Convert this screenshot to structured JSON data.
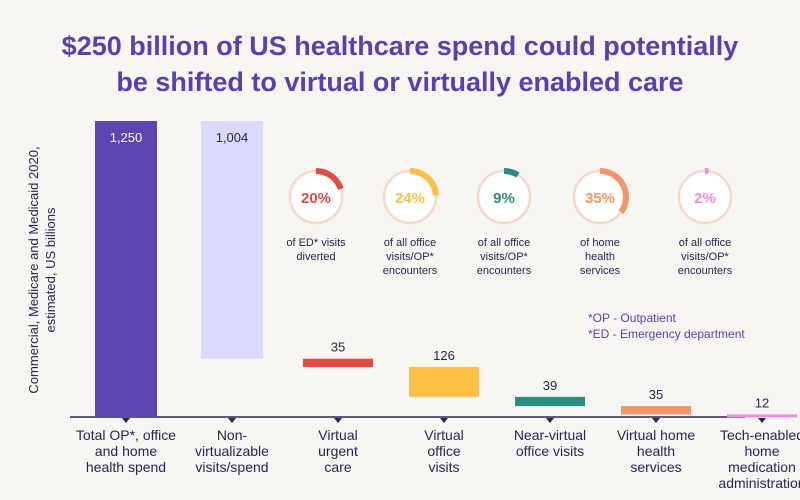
{
  "chart_data": {
    "type": "bar",
    "subtype": "waterfall",
    "title_lines": [
      "$250 billion of US healthcare spend could potentially",
      "be shifted to virtual or virtually enabled care"
    ],
    "ylabel_lines": [
      "Commercial, Medicare and Medicaid 2020,",
      "estimated, US billions"
    ],
    "ylim": [
      0,
      1250
    ],
    "categories": [
      [
        "Total OP*, office",
        "and home",
        "health spend"
      ],
      [
        "Non-",
        "virtualizable",
        "visits/spend"
      ],
      [
        "Virtual",
        "urgent",
        "care"
      ],
      [
        "Virtual",
        "office",
        "visits"
      ],
      [
        "Near-virtual",
        "office visits"
      ],
      [
        "Virtual home",
        "health",
        "services"
      ],
      [
        "Tech-enabled",
        "home",
        "medication",
        "administration"
      ]
    ],
    "values": [
      1250,
      1004,
      35,
      126,
      39,
      35,
      12
    ],
    "value_labels": [
      "1,250",
      "1,004",
      "35",
      "126",
      "39",
      "35",
      "12"
    ],
    "bar_roles": [
      "total",
      "decrease",
      "decrease",
      "decrease",
      "decrease",
      "decrease",
      "decrease"
    ],
    "colors": [
      "#5b46b2",
      "#dcdafc",
      "#e04a41",
      "#fbbf45",
      "#2e8c7e",
      "#f2956a",
      "#e98ce4"
    ],
    "shares": [
      {
        "percent": 20,
        "label_text": "20%",
        "caption": [
          "of ED* visits",
          "diverted"
        ],
        "color": "#e04a41"
      },
      {
        "percent": 24,
        "label_text": "24%",
        "caption": [
          "of all office",
          "visits/OP*",
          "encounters"
        ],
        "color": "#fbbf45"
      },
      {
        "percent": 9,
        "label_text": "9%",
        "caption": [
          "of all office",
          "visits/OP*",
          "encounters"
        ],
        "color": "#2e8c7e"
      },
      {
        "percent": 35,
        "label_text": "35%",
        "caption": [
          "of home",
          "health",
          "services"
        ],
        "color": "#f2956a"
      },
      {
        "percent": 2,
        "label_text": "2%",
        "caption": [
          "of all office",
          "visits/OP*",
          "encounters"
        ],
        "color": "#e98ce4"
      }
    ],
    "footnotes": [
      "*OP - Outpatient",
      "*ED - Emergency department"
    ],
    "grid": false,
    "legend": "none"
  }
}
